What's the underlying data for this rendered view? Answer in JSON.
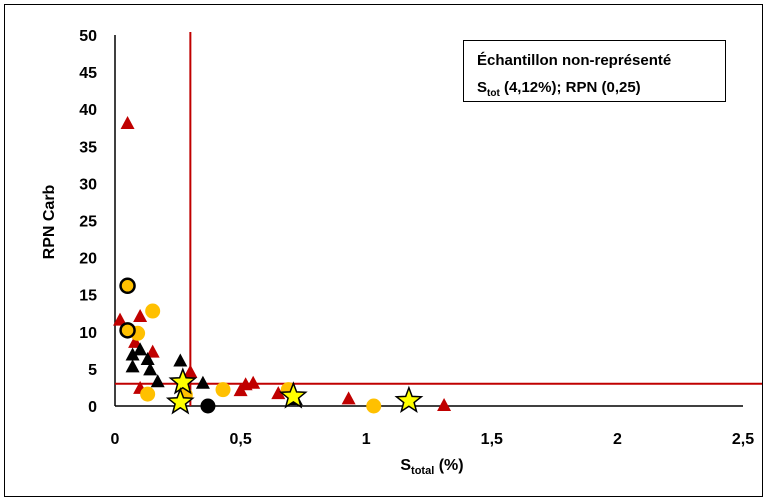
{
  "chart_data": {
    "type": "scatter",
    "xlabel": {
      "main": "S",
      "sub": "total",
      "suffix": " (%)"
    },
    "ylabel": "RPN Carb",
    "xlim": [
      0,
      2.5
    ],
    "ylim": [
      0,
      50
    ],
    "x_ticks": [
      "0",
      "0,5",
      "1",
      "1,5",
      "2",
      "2,5"
    ],
    "x_tick_values": [
      0,
      0.5,
      1,
      1.5,
      2,
      2.5
    ],
    "y_ticks": [
      "0",
      "5",
      "10",
      "15",
      "20",
      "25",
      "30",
      "35",
      "40",
      "45",
      "50"
    ],
    "y_tick_values": [
      0,
      5,
      10,
      15,
      20,
      25,
      30,
      35,
      40,
      45,
      50
    ],
    "grid": false,
    "thresholds": {
      "x": 0.3,
      "y": 3,
      "color": "#c00000"
    },
    "annotation": {
      "line1": "Échantillon non-représenté",
      "line2_main": "S",
      "line2_sub": "tot",
      "line2_rest": " (4,12%); RPN (0,25)"
    },
    "series": [
      {
        "marker": "triangle",
        "color": "#c00000",
        "points": [
          [
            0.05,
            38
          ],
          [
            0.02,
            11.5
          ],
          [
            0.1,
            12
          ],
          [
            0.08,
            8.5
          ],
          [
            0.15,
            7.2
          ],
          [
            0.1,
            2.3
          ],
          [
            0.3,
            4.5
          ],
          [
            0.5,
            2
          ],
          [
            0.52,
            2.8
          ],
          [
            0.55,
            3
          ],
          [
            0.65,
            1.6
          ],
          [
            0.93,
            0.9
          ],
          [
            1.31,
            0
          ]
        ]
      },
      {
        "marker": "triangle",
        "color": "#000000",
        "points": [
          [
            0.07,
            6.8
          ],
          [
            0.07,
            5.2
          ],
          [
            0.1,
            7.5
          ],
          [
            0.13,
            6.2
          ],
          [
            0.14,
            4.8
          ],
          [
            0.17,
            3.2
          ],
          [
            0.26,
            6.0
          ],
          [
            0.35,
            3.0
          ],
          [
            0.72,
            0.8
          ]
        ]
      },
      {
        "marker": "circle",
        "color": "#ffc000",
        "points": [
          [
            0.15,
            12.8
          ],
          [
            0.09,
            9.8
          ],
          [
            0.13,
            1.6
          ],
          [
            0.28,
            1.5
          ],
          [
            0.43,
            2.2
          ],
          [
            0.69,
            2.2
          ],
          [
            1.03,
            0
          ]
        ]
      },
      {
        "marker": "circle-outlined",
        "color": "#ffc000",
        "stroke": "#000000",
        "points": [
          [
            0.05,
            16.2
          ],
          [
            0.05,
            10.2
          ]
        ]
      },
      {
        "marker": "circle",
        "color": "#000000",
        "points": [
          [
            0.37,
            0
          ]
        ]
      },
      {
        "marker": "star",
        "color": "#ffff00",
        "stroke": "#000000",
        "points": [
          [
            0.27,
            3.2
          ],
          [
            0.26,
            0.5
          ],
          [
            0.71,
            1.3
          ],
          [
            1.17,
            0.7
          ]
        ]
      }
    ]
  }
}
